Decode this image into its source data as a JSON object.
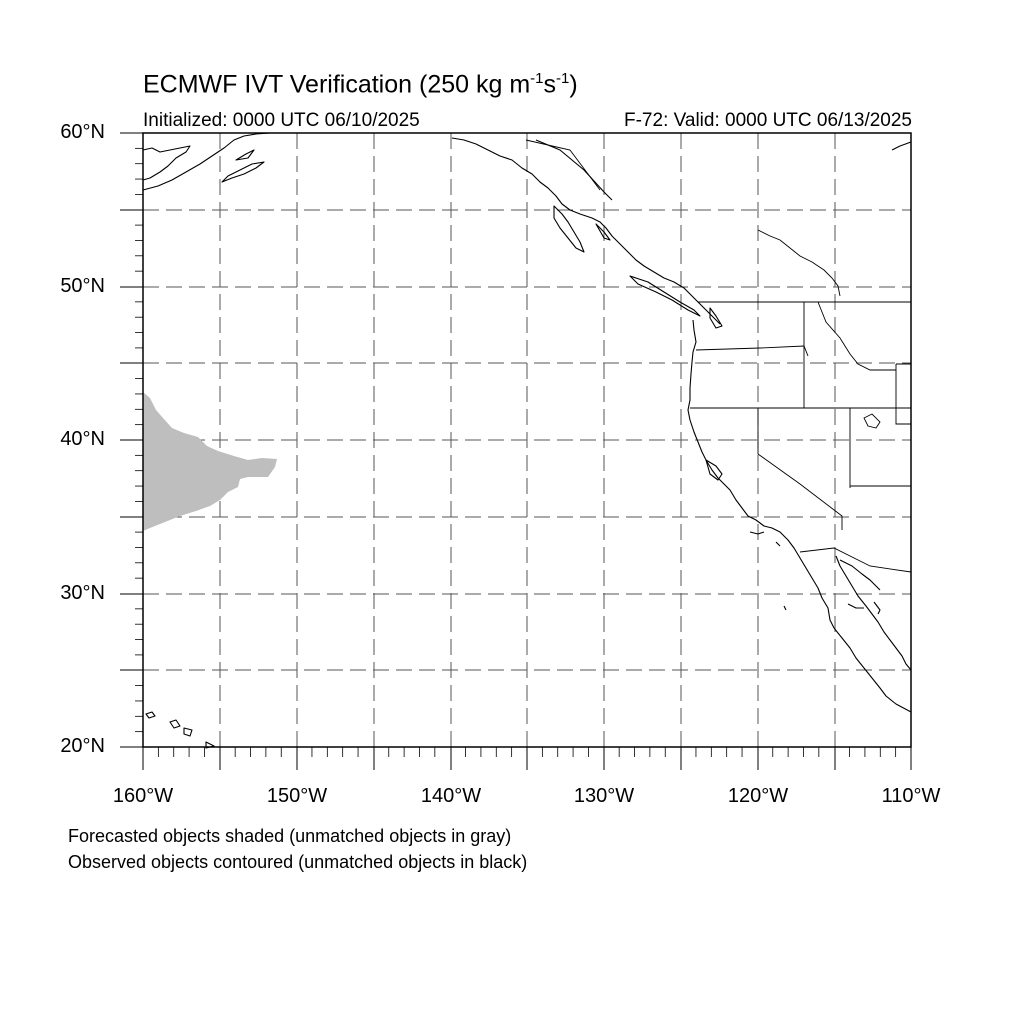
{
  "title_main": "ECMWF IVT Verification (250 kg m",
  "title_exp1": "-1",
  "title_mid": "s",
  "title_exp2": "-1",
  "title_end": ")",
  "initialized": "Initialized: 0000 UTC 06/10/2025",
  "valid": "F-72: Valid: 0000 UTC 06/13/2025",
  "lat_labels": [
    "60°N",
    "50°N",
    "40°N",
    "30°N",
    "20°N"
  ],
  "lon_labels": [
    "160°W",
    "150°W",
    "140°W",
    "130°W",
    "120°W",
    "110°W"
  ],
  "notes": {
    "forecast": "Forecasted objects shaded (unmatched objects in gray)",
    "observed": "Observed objects contoured (unmatched objects in black)"
  },
  "map_extent": {
    "lon_min": -160,
    "lon_max": -110,
    "lat_min": 20,
    "lat_max": 60
  },
  "colors": {
    "unmatched_forecast": "#bebebe",
    "coastline": "#000000",
    "grid": "#555555"
  }
}
